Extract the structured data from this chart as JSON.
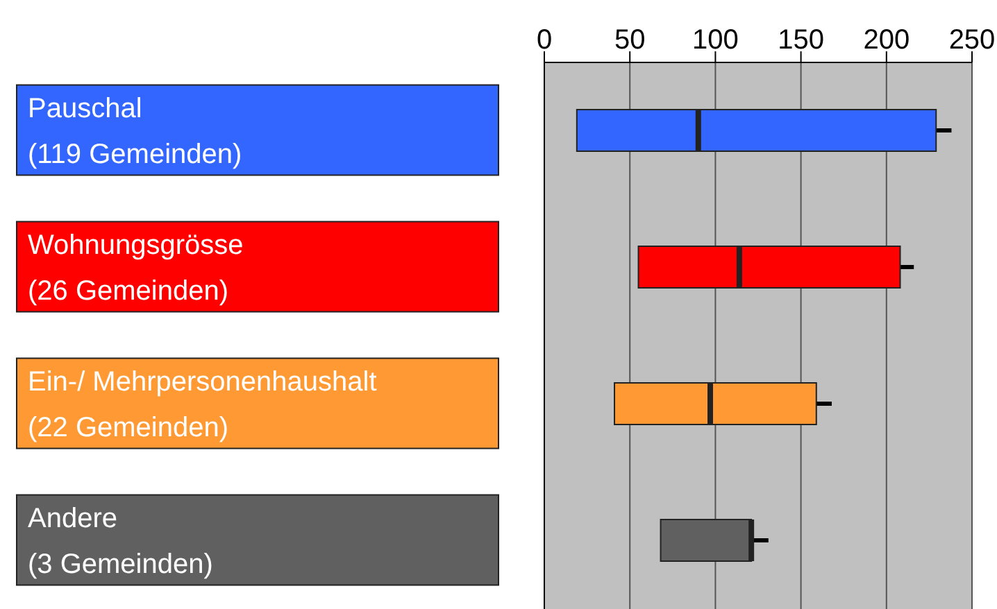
{
  "chart_data": {
    "type": "box",
    "orientation": "horizontal",
    "categories": [
      "Pauschal\n(119 Gemeinden)",
      "Wohnungsgrösse\n(26 Gemeinden)",
      "Ein-/ Mehrpersonenhaushalt\n(22 Gemeinden)",
      "Andere\n(3 Gemeinden)"
    ],
    "colors": [
      "#3366ff",
      "#ff0000",
      "#ff9933",
      "#606060"
    ],
    "boxes": [
      {
        "low": 19,
        "q1": 19,
        "median": 90,
        "q3": 229,
        "high": 238
      },
      {
        "low": 55,
        "q1": 55,
        "median": 114,
        "q3": 208,
        "high": 216
      },
      {
        "low": 41,
        "q1": 41,
        "median": 97,
        "q3": 159,
        "high": 168
      },
      {
        "low": 68,
        "q1": 68,
        "median": 121,
        "q3": 121,
        "high": 131
      }
    ],
    "xlim": [
      0,
      250
    ],
    "xticks": [
      0,
      50,
      100,
      150,
      200,
      250
    ],
    "grid": "x"
  }
}
